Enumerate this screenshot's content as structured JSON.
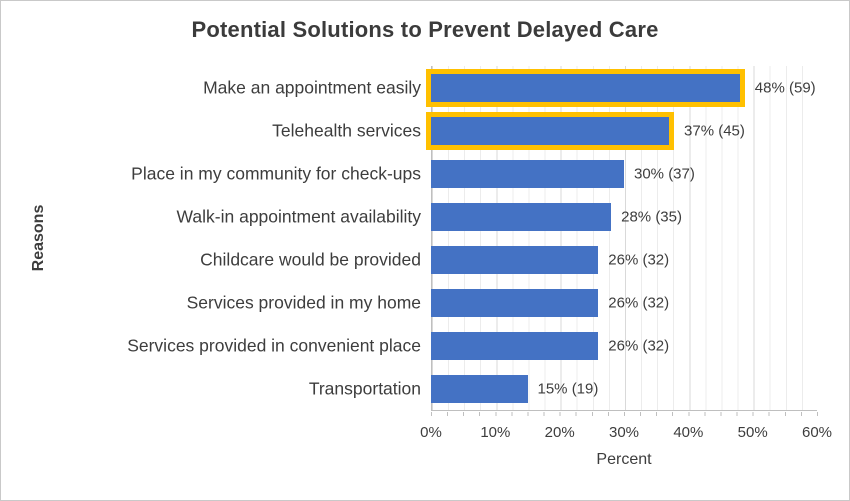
{
  "window": {
    "background": "#ffffff",
    "border_color": "#c9c9c9"
  },
  "chart_data": {
    "type": "bar",
    "orientation": "horizontal",
    "title": "Potential Solutions to Prevent Delayed Care",
    "xlabel": "Percent",
    "ylabel": "Reasons",
    "xlim": [
      0,
      60
    ],
    "x_ticks": [
      "0%",
      "10%",
      "20%",
      "30%",
      "40%",
      "50%",
      "60%"
    ],
    "x_tick_values": [
      0,
      10,
      20,
      30,
      40,
      50,
      60
    ],
    "gridlines": {
      "minor_step_pct": 2.5,
      "major_step_pct": 10,
      "visible": true
    },
    "legend": {
      "visible": false
    },
    "categories": [
      "Make an appointment easily",
      "Telehealth services",
      "Place in my community for check-ups",
      "Walk-in appointment availability",
      "Childcare would be provided",
      "Services provided in my home",
      "Services provided in convenient place",
      "Transportation"
    ],
    "bars": [
      {
        "label": "Make an appointment easily",
        "percent": 48,
        "count": 59,
        "value_label": "48% (59)",
        "highlighted": true
      },
      {
        "label": "Telehealth services",
        "percent": 37,
        "count": 45,
        "value_label": "37% (45)",
        "highlighted": true
      },
      {
        "label": "Place in my community for check-ups",
        "percent": 30,
        "count": 37,
        "value_label": "30% (37)",
        "highlighted": false
      },
      {
        "label": "Walk-in appointment availability",
        "percent": 28,
        "count": 35,
        "value_label": "28% (35)",
        "highlighted": false
      },
      {
        "label": "Childcare would be provided",
        "percent": 26,
        "count": 32,
        "value_label": "26% (32)",
        "highlighted": false
      },
      {
        "label": "Services provided in my home",
        "percent": 26,
        "count": 32,
        "value_label": "26% (32)",
        "highlighted": false
      },
      {
        "label": "Services provided in convenient place",
        "percent": 26,
        "count": 32,
        "value_label": "26% (32)",
        "highlighted": false
      },
      {
        "label": "Transportation",
        "percent": 15,
        "count": 19,
        "value_label": "15% (19)",
        "highlighted": false
      }
    ],
    "colors": {
      "bar_fill": "#4472c4",
      "highlight_outline": "#ffc000",
      "text": "#3d3d3d",
      "title_text": "#3b3b3b",
      "axis_line": "#bfbfbf",
      "gridline_minor": "#ececec",
      "gridline_major": "#d9d9d9"
    }
  }
}
